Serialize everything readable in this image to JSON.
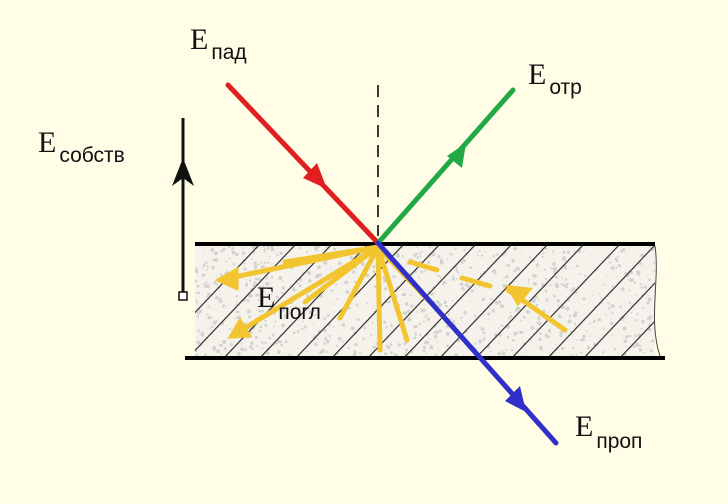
{
  "diagram": {
    "labels": {
      "incident": {
        "main": "E",
        "sub": "пад"
      },
      "reflected": {
        "main": "E",
        "sub": "отр"
      },
      "own": {
        "main": "E",
        "sub": "собств"
      },
      "absorbed": {
        "main": "E",
        "sub": "погл"
      },
      "transmitted": {
        "main": "E",
        "sub": "проп"
      }
    },
    "colors": {
      "background": "#fffde6",
      "incident": "#e02020",
      "reflected": "#22a845",
      "transmitted": "#3030c8",
      "absorbed": "#f2c530",
      "own": "#111111",
      "layer_border": "#000000",
      "hatch": "#333333",
      "speckle": "#b8b8b8"
    }
  }
}
